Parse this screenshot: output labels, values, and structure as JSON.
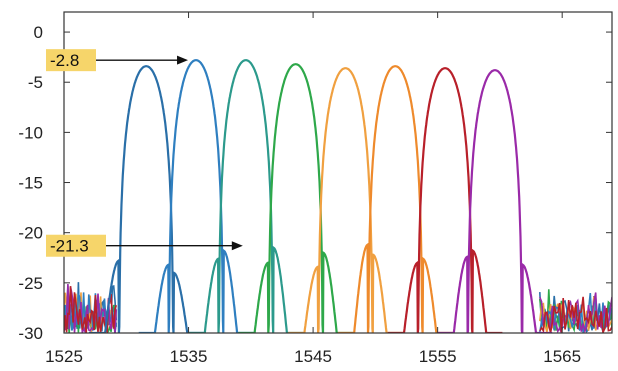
{
  "chart_data": {
    "type": "line",
    "xlim": [
      1525,
      1569
    ],
    "ylim": [
      -30,
      2
    ],
    "x_ticks": [
      1525,
      1535,
      1545,
      1555,
      1565
    ],
    "y_ticks": [
      0,
      -5,
      -10,
      -15,
      -20,
      -25,
      -30
    ],
    "grid": false,
    "legend": "none",
    "peak_width": 2.2,
    "series": [
      {
        "center": 1531.6,
        "peak": -3.4,
        "color": "#2a6fa8",
        "sidelobes": [
          {
            "x": 1529.4,
            "y": -22.8
          },
          {
            "x": 1533.8,
            "y": -24.0
          }
        ]
      },
      {
        "center": 1535.6,
        "peak": -2.8,
        "color": "#2f7fc0",
        "sidelobes": [
          {
            "x": 1533.4,
            "y": -23.2
          },
          {
            "x": 1537.8,
            "y": -21.8
          }
        ]
      },
      {
        "center": 1539.6,
        "peak": -2.8,
        "color": "#2c9a8c",
        "sidelobes": [
          {
            "x": 1537.4,
            "y": -22.6
          },
          {
            "x": 1541.8,
            "y": -21.5
          }
        ]
      },
      {
        "center": 1543.6,
        "peak": -3.2,
        "color": "#2ea84a",
        "sidelobes": [
          {
            "x": 1541.4,
            "y": -23.0
          },
          {
            "x": 1545.8,
            "y": -22.0
          }
        ]
      },
      {
        "center": 1547.6,
        "peak": -3.6,
        "color": "#f0a040",
        "sidelobes": [
          {
            "x": 1545.4,
            "y": -23.4
          },
          {
            "x": 1549.8,
            "y": -22.2
          }
        ]
      },
      {
        "center": 1551.6,
        "peak": -3.4,
        "color": "#ee8a2c",
        "sidelobes": [
          {
            "x": 1549.4,
            "y": -21.2
          },
          {
            "x": 1553.8,
            "y": -22.6
          }
        ]
      },
      {
        "center": 1555.6,
        "peak": -3.6,
        "color": "#b8202a",
        "sidelobes": [
          {
            "x": 1553.4,
            "y": -23.0
          },
          {
            "x": 1557.8,
            "y": -21.8
          }
        ]
      },
      {
        "center": 1559.6,
        "peak": -3.8,
        "color": "#9a2aa8",
        "sidelobes": [
          {
            "x": 1557.4,
            "y": -22.4
          },
          {
            "x": 1561.8,
            "y": -23.2
          }
        ]
      }
    ],
    "annotations": [
      {
        "label": "-2.8",
        "x": 1535.6,
        "y": -2.8,
        "color": "#f6d56a"
      },
      {
        "label": "-21.3",
        "x": 1540.0,
        "y": -21.3,
        "color": "#f6d56a"
      }
    ],
    "noise_floor": {
      "y": -30,
      "color_left": "#2a6fa8",
      "color_right": "#2a6fa8"
    }
  }
}
